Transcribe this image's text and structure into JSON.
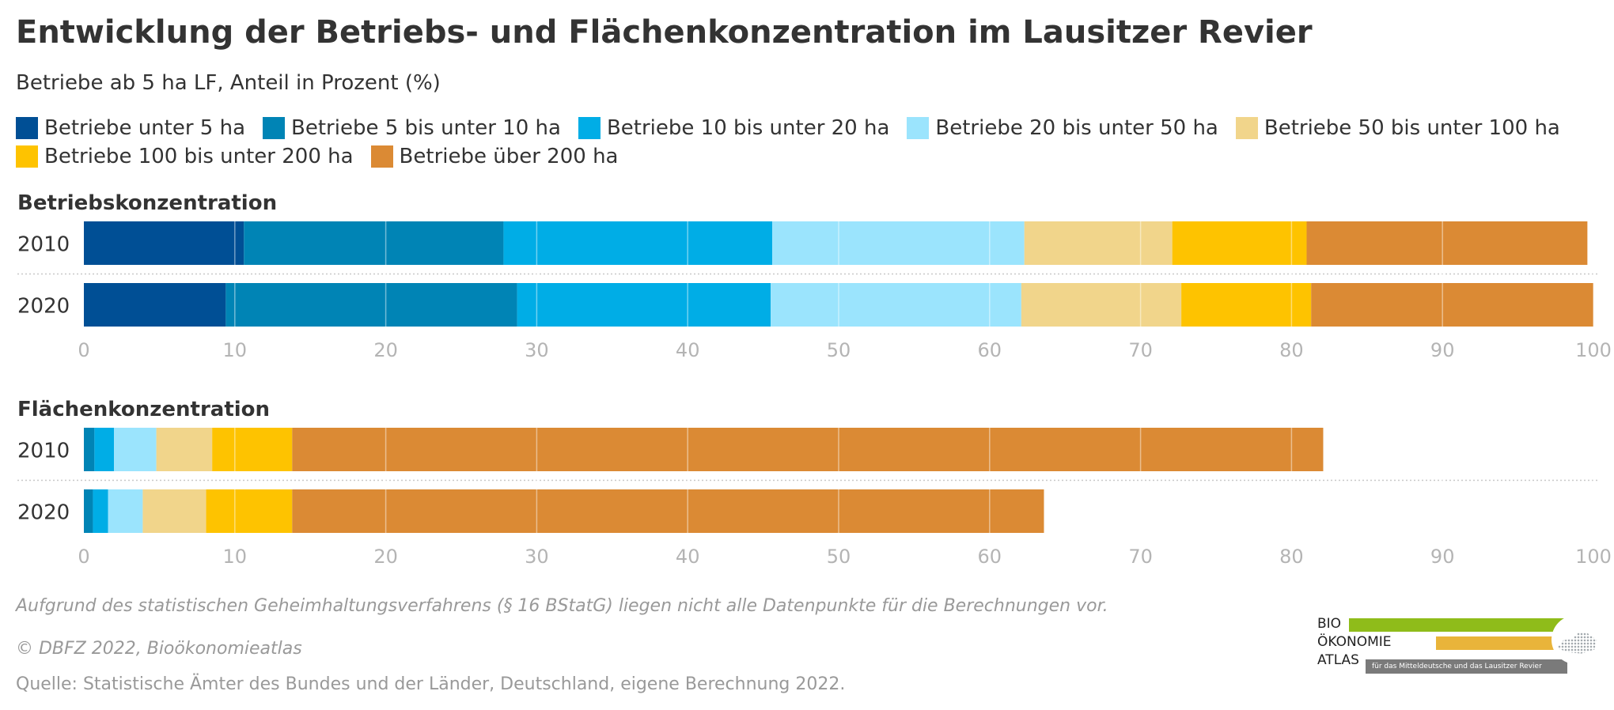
{
  "title": "Entwicklung der Betriebs- und Flächenkonzentration im Lausitzer Revier",
  "subtitle": "Betriebe ab 5 ha LF, Anteil in Prozent (%)",
  "legend_rows": [
    [
      {
        "label": "Betriebe unter 5 ha",
        "color": "#004f95"
      },
      {
        "label": "Betriebe 5 bis unter 10 ha",
        "color": "#0084b5"
      },
      {
        "label": "Betriebe 10 bis unter 20 ha",
        "color": "#00ade6"
      },
      {
        "label": "Betriebe 20 bis unter 50 ha",
        "color": "#9be4fd"
      },
      {
        "label": "Betriebe 50 bis unter 100 ha",
        "color": "#f1d58b"
      }
    ],
    [
      {
        "label": "Betriebe 100 bis unter 200 ha",
        "color": "#fec300"
      },
      {
        "label": "Betriebe über 200 ha",
        "color": "#db8a34"
      }
    ]
  ],
  "chart_data": [
    {
      "type": "bar",
      "orientation": "horizontal",
      "stacked": true,
      "title": "Betriebskonzentration",
      "categories": [
        "2010",
        "2020"
      ],
      "xlim": [
        0,
        100
      ],
      "xticks": [
        "0",
        "10",
        "20",
        "30",
        "40",
        "50",
        "60",
        "70",
        "80",
        "90",
        "100"
      ],
      "grid": true,
      "series": [
        {
          "name": "Betriebe unter 5 ha",
          "values": [
            10.6,
            9.4
          ]
        },
        {
          "name": "Betriebe 5 bis unter 10 ha",
          "values": [
            17.2,
            19.3
          ]
        },
        {
          "name": "Betriebe 10 bis unter 20 ha",
          "values": [
            17.8,
            16.8
          ]
        },
        {
          "name": "Betriebe 20 bis unter 50 ha",
          "values": [
            16.7,
            16.6
          ]
        },
        {
          "name": "Betriebe 50 bis unter 100 ha",
          "values": [
            9.8,
            10.6
          ]
        },
        {
          "name": "Betriebe 100 bis unter 200 ha",
          "values": [
            8.9,
            8.6
          ]
        },
        {
          "name": "Betriebe über 200 ha",
          "values": [
            18.6,
            18.7
          ]
        }
      ]
    },
    {
      "type": "bar",
      "orientation": "horizontal",
      "stacked": true,
      "title": "Flächenkonzentration",
      "categories": [
        "2010",
        "2020"
      ],
      "xlim": [
        0,
        100
      ],
      "xticks": [
        "0",
        "10",
        "20",
        "30",
        "40",
        "50",
        "60",
        "70",
        "80",
        "90",
        "100"
      ],
      "grid": true,
      "series": [
        {
          "name": "Betriebe unter 5 ha",
          "values": [
            0.0,
            0.0
          ]
        },
        {
          "name": "Betriebe 5 bis unter 10 ha",
          "values": [
            0.7,
            0.6
          ]
        },
        {
          "name": "Betriebe 10 bis unter 20 ha",
          "values": [
            1.3,
            1.0
          ]
        },
        {
          "name": "Betriebe 20 bis unter 50 ha",
          "values": [
            2.8,
            2.3
          ]
        },
        {
          "name": "Betriebe 50 bis unter 100 ha",
          "values": [
            3.7,
            4.2
          ]
        },
        {
          "name": "Betriebe 100 bis unter 200 ha",
          "values": [
            5.3,
            5.7
          ]
        },
        {
          "name": "Betriebe über 200 ha",
          "values": [
            68.3,
            49.8
          ]
        }
      ]
    }
  ],
  "footnote": "Aufgrund des statistischen Geheimhaltungsverfahrens (§ 16 BStatG) liegen nicht alle Datenpunkte für die Berechnungen vor.",
  "copyright": "© DBFZ 2022, Bioökonomieatlas",
  "source": "Quelle: Statistische Ämter des Bundes und der Länder, Deutschland, eigene Berechnung 2022.",
  "logo": {
    "line1": "BIO",
    "line2": "ÖKONOMIE",
    "line3": "ATLAS",
    "tagline": "für das Mitteldeutsche und das Lausitzer Revier",
    "colors": [
      "#8fbc1a",
      "#e9b43a",
      "#7a7a7a"
    ]
  }
}
